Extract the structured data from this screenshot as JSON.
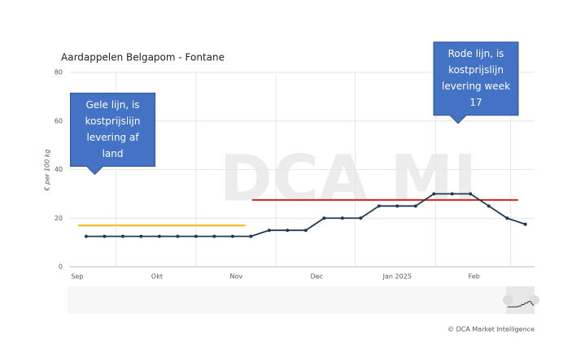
{
  "chart_data": {
    "type": "line",
    "title": "Aardappelen Belgapom - Fontane",
    "ylabel": "€ per 100 kg",
    "watermark": "DCA MI",
    "credit": "© DCA Market Intelligence",
    "x": [
      0,
      1,
      2,
      3,
      4,
      5,
      6,
      7,
      8,
      9,
      10,
      11,
      12,
      13,
      14,
      15,
      16,
      17,
      18,
      19,
      20,
      21,
      22,
      23,
      24
    ],
    "series": [
      {
        "color": "#1f3a52",
        "values": [
          12.5,
          12.5,
          12.5,
          12.5,
          12.5,
          12.5,
          12.5,
          12.5,
          12.5,
          12.5,
          15,
          15,
          15,
          20,
          20,
          20,
          25,
          25,
          25,
          30,
          30,
          30,
          25,
          20,
          17.5
        ]
      }
    ],
    "xlim": [
      -0.93,
      24.5
    ],
    "xticks": [
      {
        "value": -0.49,
        "label": "Sep"
      },
      {
        "value": 3.87,
        "label": "Okt"
      },
      {
        "value": 8.2,
        "label": "Nov"
      },
      {
        "value": 12.6,
        "label": "Dec"
      },
      {
        "value": 17.0,
        "label": "Jan 2025"
      },
      {
        "value": 21.2,
        "label": "Feb"
      }
    ],
    "xgrid": [
      1.64,
      6.0,
      10.36,
      14.7,
      19.1,
      23.2
    ],
    "ylim": [
      0,
      80
    ],
    "yticks": [
      0,
      20,
      40,
      60,
      80
    ],
    "grid": true,
    "reference_lines": [
      {
        "value": 17,
        "x": [
          -0.44,
          8.7
        ],
        "color": "#f5b21b"
      },
      {
        "value": 27.5,
        "x": [
          9.07,
          23.6
        ],
        "color": "#d62020"
      }
    ],
    "annotations": [
      {
        "lines": [
          "Gele lijn, is",
          "kostprijslijn",
          "levering af",
          "land"
        ],
        "x": 1.45,
        "y": 38
      },
      {
        "lines": [
          "Rode lijn, is",
          "kostprijslijn",
          "levering week",
          "17"
        ],
        "x": 21.3,
        "y": 59
      }
    ]
  }
}
